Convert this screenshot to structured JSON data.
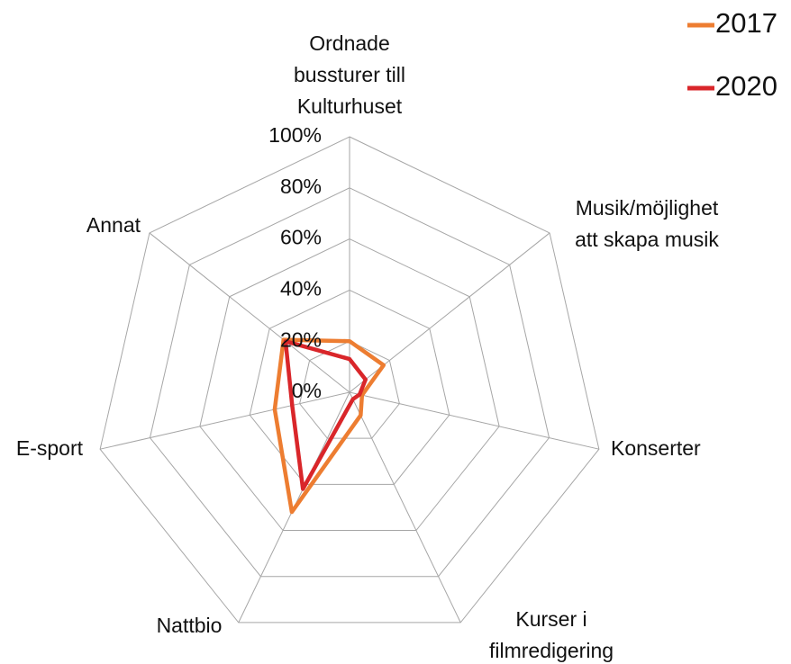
{
  "chart_data": {
    "type": "radar",
    "categories": [
      "Ordnade\nbussturer till\nKulturhuset",
      "Musik/möjlighet\natt skapa musik",
      "Konserter",
      "Kurser i\nfilmredigering",
      "Nattbio",
      "E-sport",
      "Annat"
    ],
    "series": [
      {
        "name": "2017",
        "color": "#ed7d31",
        "values": [
          20,
          17,
          5,
          10,
          52,
          30,
          33
        ]
      },
      {
        "name": "2020",
        "color": "#d9262a",
        "values": [
          13,
          8,
          4,
          3,
          42,
          23,
          32
        ]
      }
    ],
    "ylim": [
      0,
      100
    ],
    "yticks": [
      {
        "value": 0,
        "label": "0%"
      },
      {
        "value": 20,
        "label": "20%"
      },
      {
        "value": 40,
        "label": "40%"
      },
      {
        "value": 60,
        "label": "60%"
      },
      {
        "value": 80,
        "label": "80%"
      },
      {
        "value": 100,
        "label": "100%"
      }
    ],
    "grid": true,
    "legend": "top-right"
  }
}
